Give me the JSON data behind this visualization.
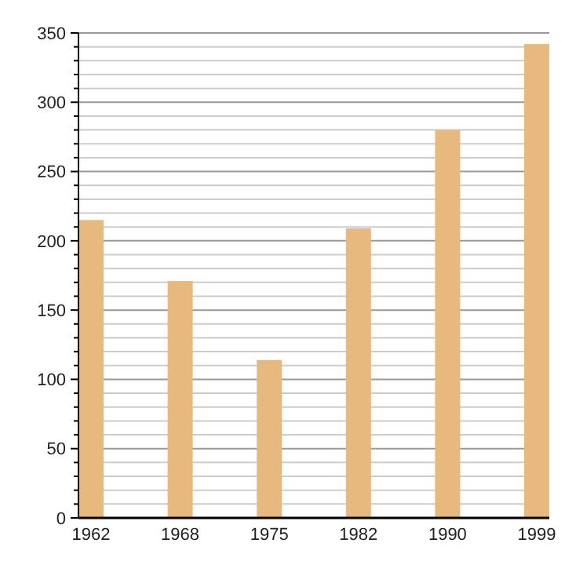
{
  "chart_data": {
    "type": "bar",
    "categories": [
      "1962",
      "1968",
      "1975",
      "1982",
      "1990",
      "1999"
    ],
    "values": [
      215,
      171,
      114,
      209,
      280,
      342
    ],
    "color": "#e8b97e",
    "ylim": [
      0,
      350
    ],
    "yticks": [
      0,
      {
        "value": 10,
        "label": null
      },
      {
        "value": 20,
        "label": null
      },
      {
        "value": 30,
        "label": null
      },
      {
        "value": 40,
        "label": null
      },
      50,
      {
        "value": 60,
        "label": null
      },
      {
        "value": 70,
        "label": null
      },
      {
        "value": 80,
        "label": null
      },
      {
        "value": 90,
        "label": null
      },
      100,
      {
        "value": 110,
        "label": null
      },
      {
        "value": 120,
        "label": null
      },
      {
        "value": 130,
        "label": null
      },
      {
        "value": 140,
        "label": null
      },
      150,
      {
        "value": 160,
        "label": null
      },
      {
        "value": 170,
        "label": null
      },
      {
        "value": 180,
        "label": null
      },
      {
        "value": 190,
        "label": null
      },
      200,
      {
        "value": 210,
        "label": null
      },
      {
        "value": 220,
        "label": null
      },
      {
        "value": 230,
        "label": null
      },
      {
        "value": 240,
        "label": null
      },
      250,
      {
        "value": 260,
        "label": null
      },
      {
        "value": 270,
        "label": null
      },
      {
        "value": 280,
        "label": null
      },
      {
        "value": 290,
        "label": null
      },
      300,
      {
        "value": 310,
        "label": null
      },
      {
        "value": 320,
        "label": null
      },
      {
        "value": 330,
        "label": null
      },
      {
        "value": 340,
        "label": null
      },
      350
    ],
    "grid": "y"
  }
}
